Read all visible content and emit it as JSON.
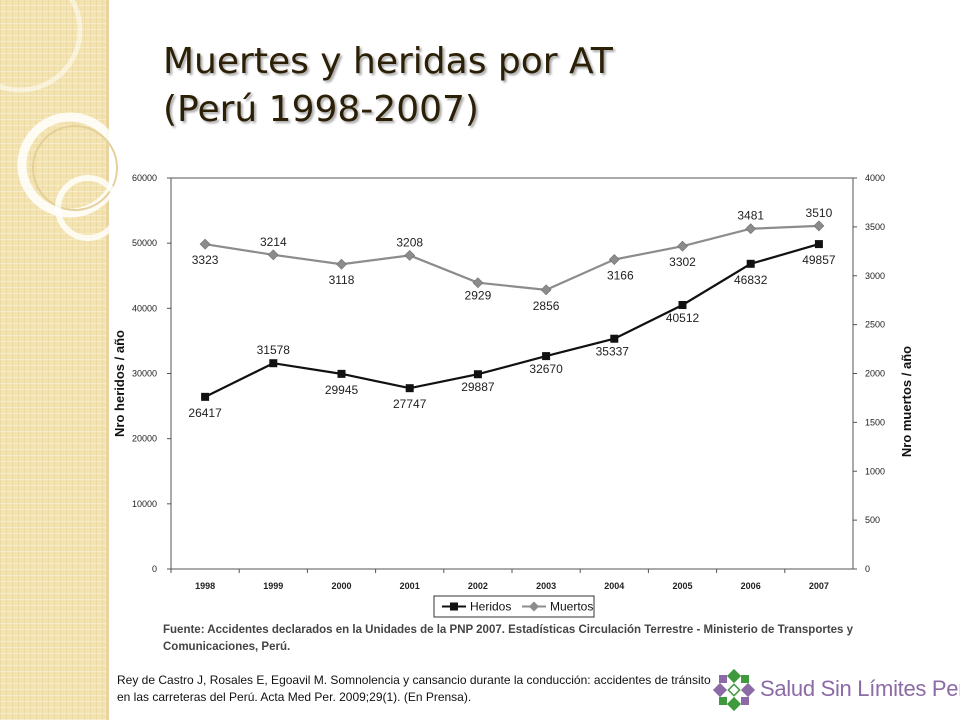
{
  "slide": {
    "title_line1": "Muertes y heridas por AT",
    "title_line2": "(Perú 1998-2007)",
    "caption": "Fuente: Accidentes declarados en la Unidades de la PNP 2007. Estadísticas Circulación Terrestre - Ministerio de Transportes y Comunicaciones, Perú.",
    "citation": "Rey de Castro J, Rosales E, Egoavil M. Somnolencia y cansancio durante la conducción: accidentes de tránsito en las carreteras  del Perú.  Acta Med Per. 2009;29(1).  (En Prensa).",
    "logo_text": "Salud Sin Límites Perú",
    "logo_colors": [
      "#3e9a3c",
      "#8b6aa6"
    ]
  },
  "chart_data": {
    "type": "line",
    "title": "",
    "categories": [
      "1998",
      "1999",
      "2000",
      "2001",
      "2002",
      "2003",
      "2004",
      "2005",
      "2006",
      "2007"
    ],
    "ylabel_left": "Nro heridos / año",
    "ylabel_right": "Nro muertos / año",
    "ylim_left": [
      0,
      60000
    ],
    "ylim_right": [
      0,
      4000
    ],
    "yticks_left": [
      "0",
      "10000",
      "20000",
      "30000",
      "40000",
      "50000",
      "60000"
    ],
    "yticks_right": [
      "0",
      "500",
      "1000",
      "1500",
      "2000",
      "2500",
      "3000",
      "3500",
      "4000"
    ],
    "grid": false,
    "legend_position": "bottom-center",
    "series": [
      {
        "name": "Heridos",
        "axis": "left",
        "marker": "square",
        "color": "#111111",
        "values": [
          26417,
          31578,
          29945,
          27747,
          29887,
          32670,
          35337,
          40512,
          46832,
          49857
        ]
      },
      {
        "name": "Muertos",
        "axis": "right",
        "marker": "diamond",
        "color": "#8c8c8c",
        "values": [
          3323,
          3214,
          3118,
          3208,
          2929,
          2856,
          3166,
          3302,
          3481,
          3510
        ]
      }
    ]
  }
}
